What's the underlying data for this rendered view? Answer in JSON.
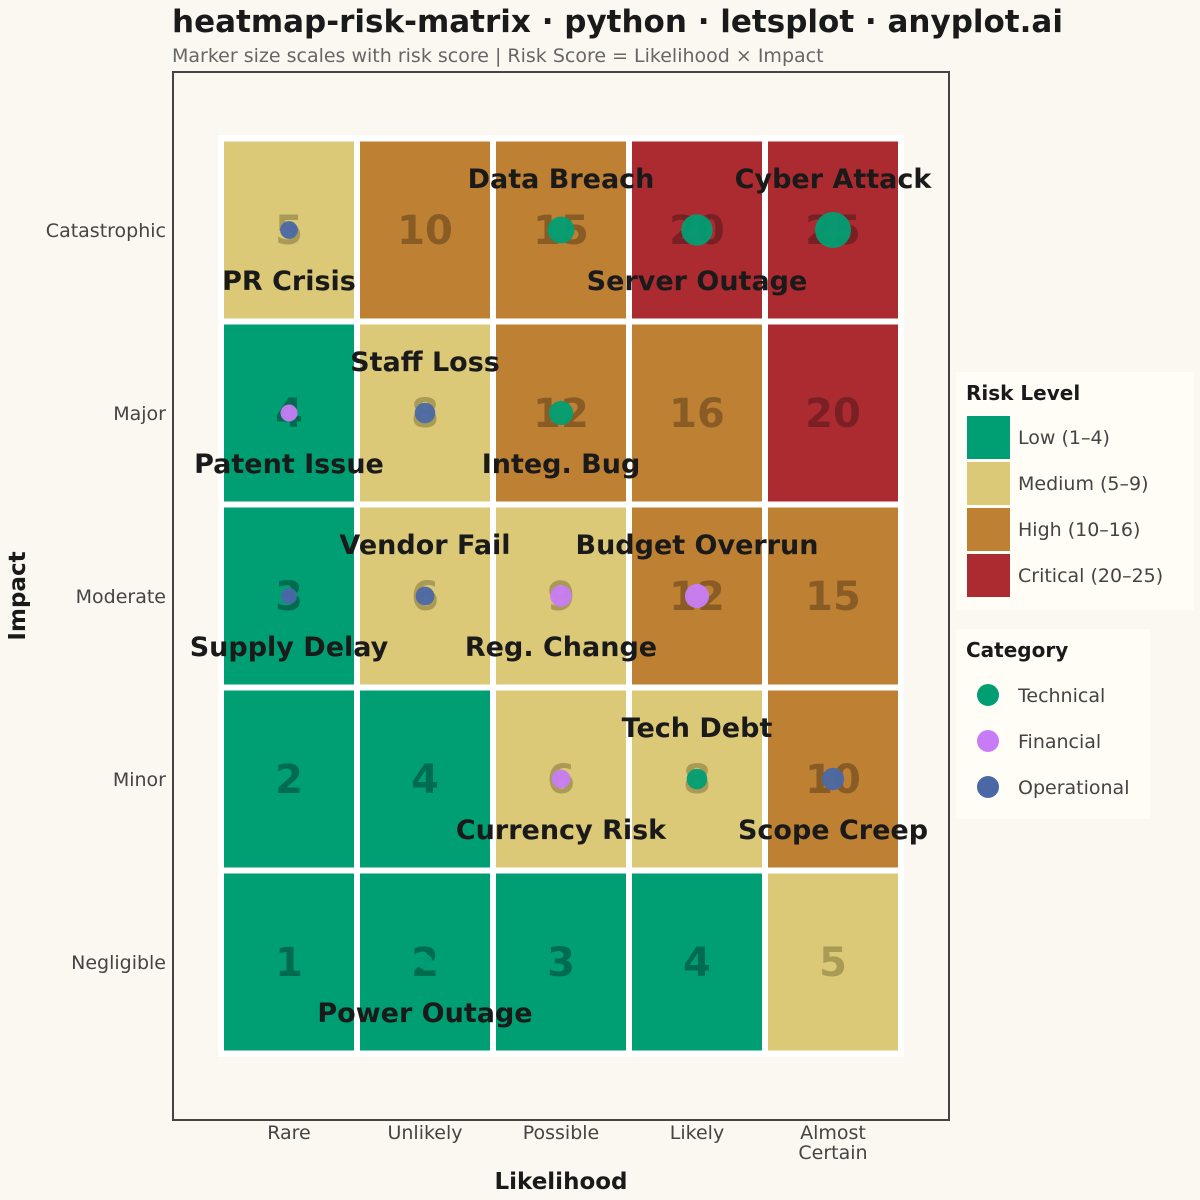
{
  "title": "heatmap-risk-matrix · python · letsplot · anyplot.ai",
  "subtitle": "Marker size scales with risk score  |  Risk Score = Likelihood × Impact",
  "chart_data": {
    "type": "heatmap",
    "xlabel": "Likelihood",
    "ylabel": "Impact",
    "x_categories": [
      "Rare",
      "Unlikely",
      "Possible",
      "Likely",
      "Almost Certain"
    ],
    "y_categories": [
      "Negligible",
      "Minor",
      "Moderate",
      "Major",
      "Catastrophic"
    ],
    "cells": [
      {
        "likelihood": 1,
        "impact": 1,
        "score": 1,
        "level": "Low"
      },
      {
        "likelihood": 2,
        "impact": 1,
        "score": 2,
        "level": "Low"
      },
      {
        "likelihood": 3,
        "impact": 1,
        "score": 3,
        "level": "Low"
      },
      {
        "likelihood": 4,
        "impact": 1,
        "score": 4,
        "level": "Low"
      },
      {
        "likelihood": 5,
        "impact": 1,
        "score": 5,
        "level": "Medium"
      },
      {
        "likelihood": 1,
        "impact": 2,
        "score": 2,
        "level": "Low"
      },
      {
        "likelihood": 2,
        "impact": 2,
        "score": 4,
        "level": "Low"
      },
      {
        "likelihood": 3,
        "impact": 2,
        "score": 6,
        "level": "Medium"
      },
      {
        "likelihood": 4,
        "impact": 2,
        "score": 8,
        "level": "Medium"
      },
      {
        "likelihood": 5,
        "impact": 2,
        "score": 10,
        "level": "High"
      },
      {
        "likelihood": 1,
        "impact": 3,
        "score": 3,
        "level": "Low"
      },
      {
        "likelihood": 2,
        "impact": 3,
        "score": 6,
        "level": "Medium"
      },
      {
        "likelihood": 3,
        "impact": 3,
        "score": 9,
        "level": "Medium"
      },
      {
        "likelihood": 4,
        "impact": 3,
        "score": 12,
        "level": "High"
      },
      {
        "likelihood": 5,
        "impact": 3,
        "score": 15,
        "level": "High"
      },
      {
        "likelihood": 1,
        "impact": 4,
        "score": 4,
        "level": "Low"
      },
      {
        "likelihood": 2,
        "impact": 4,
        "score": 8,
        "level": "Medium"
      },
      {
        "likelihood": 3,
        "impact": 4,
        "score": 12,
        "level": "High"
      },
      {
        "likelihood": 4,
        "impact": 4,
        "score": 16,
        "level": "High"
      },
      {
        "likelihood": 5,
        "impact": 4,
        "score": 20,
        "level": "Critical"
      },
      {
        "likelihood": 1,
        "impact": 5,
        "score": 5,
        "level": "Medium"
      },
      {
        "likelihood": 2,
        "impact": 5,
        "score": 10,
        "level": "High"
      },
      {
        "likelihood": 3,
        "impact": 5,
        "score": 15,
        "level": "High"
      },
      {
        "likelihood": 4,
        "impact": 5,
        "score": 20,
        "level": "Critical"
      },
      {
        "likelihood": 5,
        "impact": 5,
        "score": 25,
        "level": "Critical"
      }
    ],
    "risks": [
      {
        "name": "Data Breach",
        "likelihood": 3,
        "impact": 5,
        "category": "Technical",
        "label_position": "above"
      },
      {
        "name": "Cyber Attack",
        "likelihood": 5,
        "impact": 5,
        "category": "Technical",
        "label_position": "above"
      },
      {
        "name": "PR Crisis",
        "likelihood": 1,
        "impact": 5,
        "category": "Operational",
        "label_position": "below"
      },
      {
        "name": "Server Outage",
        "likelihood": 4,
        "impact": 5,
        "category": "Technical",
        "label_position": "below"
      },
      {
        "name": "Staff Loss",
        "likelihood": 2,
        "impact": 4,
        "category": "Operational",
        "label_position": "above"
      },
      {
        "name": "Patent Issue",
        "likelihood": 1,
        "impact": 4,
        "category": "Financial",
        "label_position": "below"
      },
      {
        "name": "Integ. Bug",
        "likelihood": 3,
        "impact": 4,
        "category": "Technical",
        "label_position": "below"
      },
      {
        "name": "Vendor Fail",
        "likelihood": 2,
        "impact": 3,
        "category": "Operational",
        "label_position": "above"
      },
      {
        "name": "Budget Overrun",
        "likelihood": 4,
        "impact": 3,
        "category": "Financial",
        "label_position": "above"
      },
      {
        "name": "Supply Delay",
        "likelihood": 1,
        "impact": 3,
        "category": "Operational",
        "label_position": "below"
      },
      {
        "name": "Reg. Change",
        "likelihood": 3,
        "impact": 3,
        "category": "Financial",
        "label_position": "below"
      },
      {
        "name": "Tech Debt",
        "likelihood": 4,
        "impact": 2,
        "category": "Technical",
        "label_position": "above"
      },
      {
        "name": "Currency Risk",
        "likelihood": 3,
        "impact": 2,
        "category": "Financial",
        "label_position": "below"
      },
      {
        "name": "Scope Creep",
        "likelihood": 5,
        "impact": 2,
        "category": "Operational",
        "label_position": "below"
      },
      {
        "name": "Power Outage",
        "likelihood": 2,
        "impact": 1,
        "category": "Technical",
        "label_position": "below"
      }
    ],
    "level_colors": {
      "Low": "#009E73",
      "Medium": "#DBC978",
      "High": "#BE8033",
      "Critical": "#AB2B30"
    },
    "score_text_colors": {
      "Low": "#006B4F",
      "Medium": "#A99A56",
      "High": "#8A5C25",
      "Critical": "#7A1F23"
    },
    "category_colors": {
      "Technical": "#009E73",
      "Financial": "#C77CF5",
      "Operational": "#4A68A6"
    },
    "legend_risk_level": {
      "title": "Risk Level",
      "placement": "right",
      "items": [
        {
          "level": "Low",
          "label": "Low (1–4)"
        },
        {
          "level": "Medium",
          "label": "Medium (5–9)"
        },
        {
          "level": "High",
          "label": "High (10–16)"
        },
        {
          "level": "Critical",
          "label": "Critical (20–25)"
        }
      ]
    },
    "legend_category": {
      "title": "Category",
      "placement": "right",
      "items": [
        {
          "category": "Technical",
          "label": "Technical"
        },
        {
          "category": "Financial",
          "label": "Financial"
        },
        {
          "category": "Operational",
          "label": "Operational"
        }
      ]
    },
    "x_tick_labels": [
      [
        "Rare"
      ],
      [
        "Unlikely"
      ],
      [
        "Possible"
      ],
      [
        "Likely"
      ],
      [
        "Almost",
        "Certain"
      ]
    ],
    "y_tick_labels": [
      "Negligible",
      "Minor",
      "Moderate",
      "Major",
      "Catastrophic"
    ],
    "score_range": [
      1,
      25
    ],
    "grid": false
  }
}
